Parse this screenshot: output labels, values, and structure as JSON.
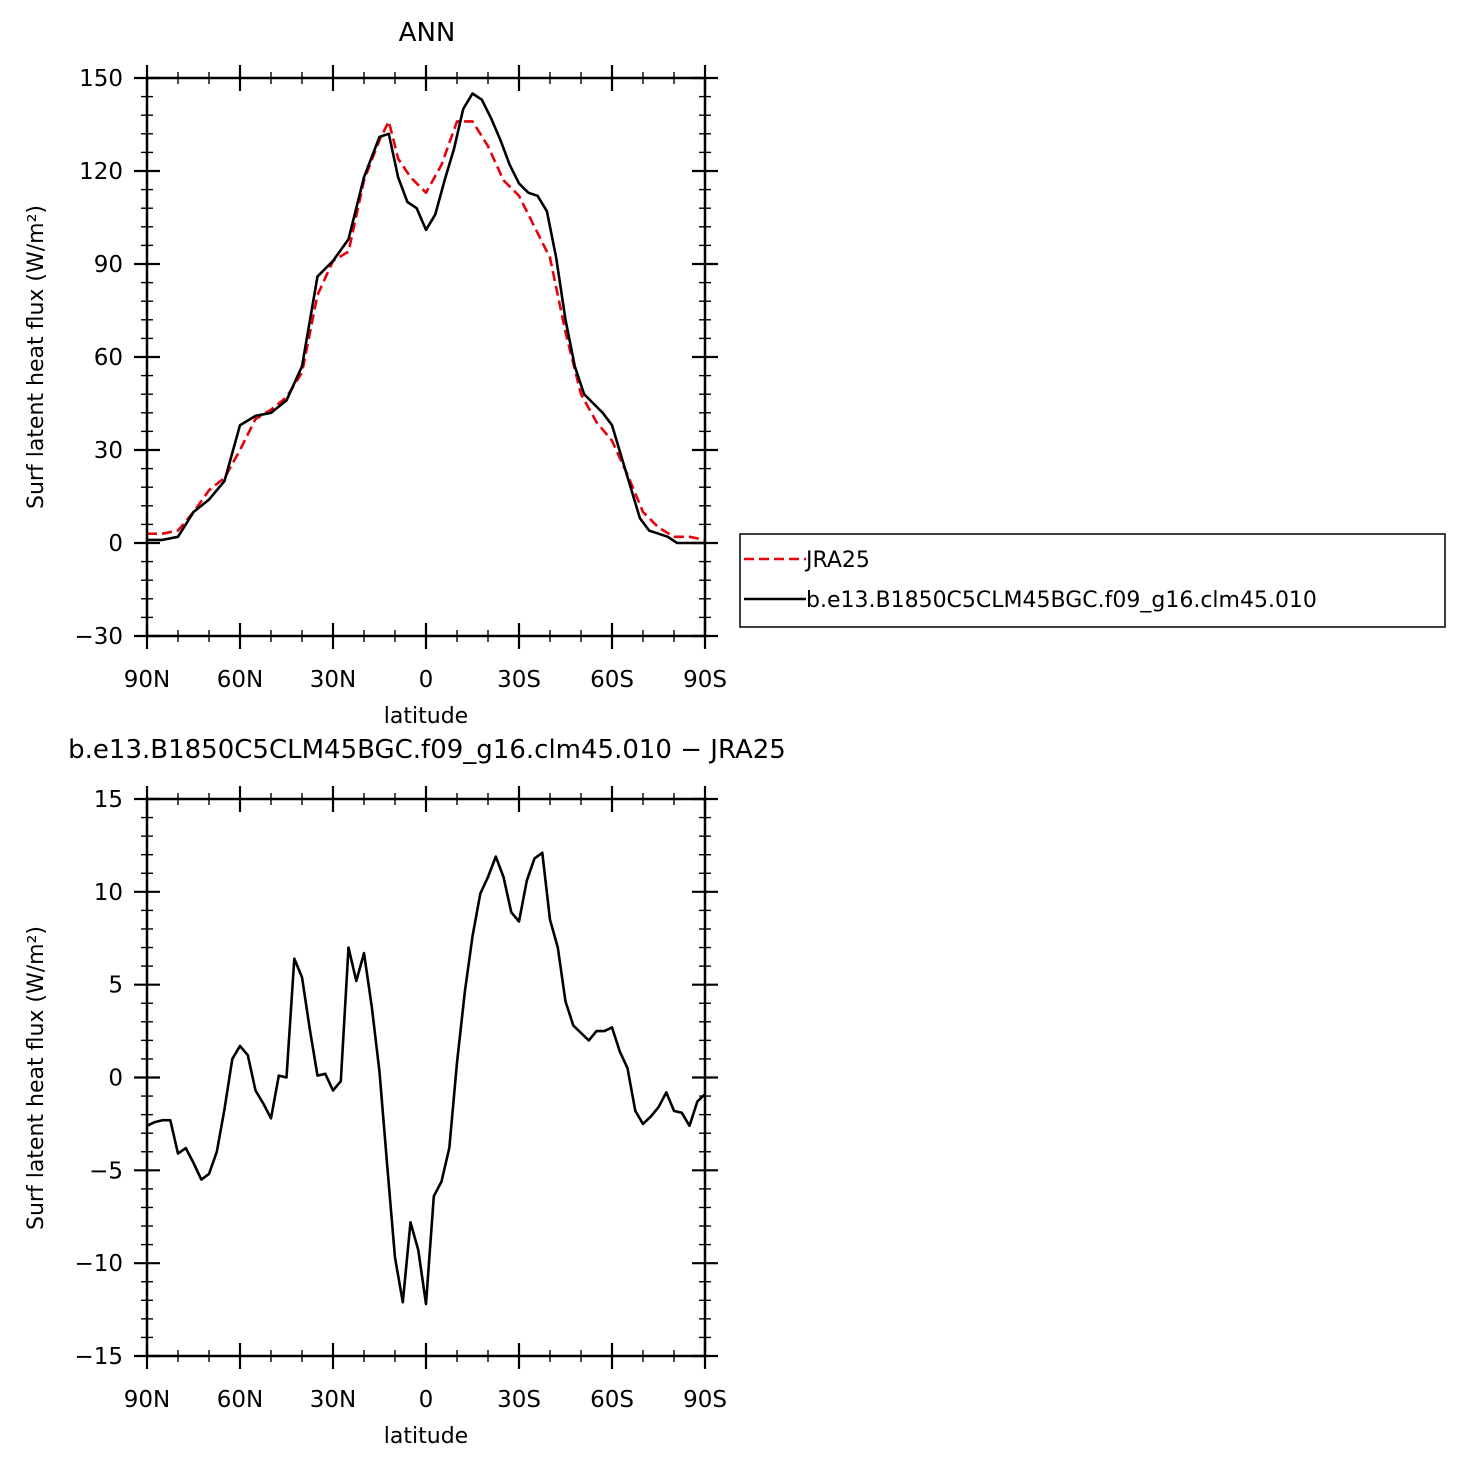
{
  "chart_data": [
    {
      "type": "line",
      "title": "ANN",
      "xlabel": "latitude",
      "ylabel": "Surf latent heat flux (W/m²)",
      "xlim": [
        90,
        -90
      ],
      "ylim": [
        -30,
        150
      ],
      "yticks": [
        -30,
        0,
        30,
        60,
        90,
        120,
        150
      ],
      "xticks": [
        {
          "value": 90,
          "label": "90N"
        },
        {
          "value": 60,
          "label": "60N"
        },
        {
          "value": 30,
          "label": "30N"
        },
        {
          "value": 0,
          "label": "0"
        },
        {
          "value": -30,
          "label": "30S"
        },
        {
          "value": -60,
          "label": "60S"
        },
        {
          "value": -90,
          "label": "90S"
        }
      ],
      "legend": "right",
      "series": [
        {
          "name": "JRA25",
          "color": "#e8000b",
          "dash": true,
          "points": [
            [
              90,
              3
            ],
            [
              85,
              3
            ],
            [
              80,
              4
            ],
            [
              75,
              10
            ],
            [
              70,
              17
            ],
            [
              65,
              21
            ],
            [
              60,
              30
            ],
            [
              55,
              40
            ],
            [
              50,
              43
            ],
            [
              45,
              47
            ],
            [
              40,
              55
            ],
            [
              35,
              80
            ],
            [
              30,
              91
            ],
            [
              25,
              94
            ],
            [
              20,
              117
            ],
            [
              15,
              130
            ],
            [
              12,
              136
            ],
            [
              9,
              124
            ],
            [
              5,
              118
            ],
            [
              0,
              113
            ],
            [
              -5,
              122
            ],
            [
              -10,
              136
            ],
            [
              -15,
              136
            ],
            [
              -20,
              128
            ],
            [
              -25,
              117
            ],
            [
              -30,
              112
            ],
            [
              -35,
              102
            ],
            [
              -40,
              92
            ],
            [
              -45,
              68
            ],
            [
              -50,
              48
            ],
            [
              -55,
              39
            ],
            [
              -60,
              33
            ],
            [
              -65,
              22
            ],
            [
              -70,
              10
            ],
            [
              -75,
              5
            ],
            [
              -80,
              2
            ],
            [
              -85,
              2
            ],
            [
              -90,
              1
            ]
          ]
        },
        {
          "name": "b.e13.B1850C5CLM45BGC.f09_g16.clm45.010",
          "color": "#000000",
          "dash": false,
          "points": [
            [
              90,
              1
            ],
            [
              85,
              1
            ],
            [
              80,
              2
            ],
            [
              75,
              10
            ],
            [
              70,
              14
            ],
            [
              65,
              20
            ],
            [
              60,
              38
            ],
            [
              55,
              41
            ],
            [
              50,
              42
            ],
            [
              45,
              46
            ],
            [
              40,
              57
            ],
            [
              35,
              86
            ],
            [
              30,
              91
            ],
            [
              25,
              98
            ],
            [
              20,
              118
            ],
            [
              15,
              131
            ],
            [
              12,
              132
            ],
            [
              9,
              118
            ],
            [
              6,
              110
            ],
            [
              3,
              108
            ],
            [
              0,
              101
            ],
            [
              -3,
              106
            ],
            [
              -6,
              117
            ],
            [
              -9,
              127
            ],
            [
              -12,
              140
            ],
            [
              -15,
              145
            ],
            [
              -18,
              143
            ],
            [
              -21,
              137
            ],
            [
              -24,
              130
            ],
            [
              -27,
              122
            ],
            [
              -30,
              116
            ],
            [
              -33,
              113
            ],
            [
              -36,
              112
            ],
            [
              -39,
              107
            ],
            [
              -42,
              92
            ],
            [
              -45,
              72
            ],
            [
              -48,
              57
            ],
            [
              -51,
              48
            ],
            [
              -54,
              45
            ],
            [
              -57,
              42
            ],
            [
              -60,
              38
            ],
            [
              -63,
              28
            ],
            [
              -66,
              18
            ],
            [
              -69,
              8
            ],
            [
              -72,
              4
            ],
            [
              -75,
              3
            ],
            [
              -78,
              2
            ],
            [
              -81,
              0
            ],
            [
              -84,
              0
            ],
            [
              -87,
              0
            ],
            [
              -90,
              0
            ]
          ]
        }
      ]
    },
    {
      "type": "line",
      "title": "b.e13.B1850C5CLM45BGC.f09_g16.clm45.010 − JRA25",
      "xlabel": "latitude",
      "ylabel": "Surf latent heat flux (W/m²)",
      "xlim": [
        90,
        -90
      ],
      "ylim": [
        -15,
        15
      ],
      "yticks": [
        -15,
        -10,
        -5,
        0,
        5,
        10,
        15
      ],
      "xticks": [
        {
          "value": 90,
          "label": "90N"
        },
        {
          "value": 60,
          "label": "60N"
        },
        {
          "value": 30,
          "label": "30N"
        },
        {
          "value": 0,
          "label": "0"
        },
        {
          "value": -30,
          "label": "30S"
        },
        {
          "value": -60,
          "label": "60S"
        },
        {
          "value": -90,
          "label": "90S"
        }
      ],
      "series": [
        {
          "color": "#000000",
          "dash": false,
          "points": [
            [
              90,
              -2.6
            ],
            [
              87.5,
              -2.4
            ],
            [
              85,
              -2.3
            ],
            [
              82.5,
              -2.3
            ],
            [
              80,
              -4.1
            ],
            [
              77.5,
              -3.8
            ],
            [
              75,
              -4.6
            ],
            [
              72.5,
              -5.5
            ],
            [
              70,
              -5.2
            ],
            [
              67.5,
              -4.0
            ],
            [
              65,
              -1.7
            ],
            [
              62.5,
              1.0
            ],
            [
              60,
              1.7
            ],
            [
              57.5,
              1.2
            ],
            [
              55,
              -0.7
            ],
            [
              52.5,
              -1.4
            ],
            [
              50,
              -2.2
            ],
            [
              47.5,
              0.1
            ],
            [
              45,
              0.0
            ],
            [
              42.5,
              6.4
            ],
            [
              40,
              5.4
            ],
            [
              37.5,
              2.6
            ],
            [
              35,
              0.1
            ],
            [
              32.5,
              0.2
            ],
            [
              30,
              -0.7
            ],
            [
              27.5,
              -0.2
            ],
            [
              25,
              7.0
            ],
            [
              22.5,
              5.2
            ],
            [
              20,
              6.7
            ],
            [
              17.5,
              3.8
            ],
            [
              15,
              0.3
            ],
            [
              12.5,
              -4.8
            ],
            [
              10,
              -9.7
            ],
            [
              7.5,
              -12.1
            ],
            [
              5,
              -7.8
            ],
            [
              2.5,
              -9.3
            ],
            [
              0,
              -12.2
            ],
            [
              -2.5,
              -6.4
            ],
            [
              -5,
              -5.6
            ],
            [
              -7.5,
              -3.8
            ],
            [
              -10,
              0.8
            ],
            [
              -12.5,
              4.6
            ],
            [
              -15,
              7.6
            ],
            [
              -17.5,
              9.9
            ],
            [
              -20,
              10.8
            ],
            [
              -22.5,
              11.9
            ],
            [
              -25,
              10.8
            ],
            [
              -27.5,
              8.9
            ],
            [
              -30,
              8.4
            ],
            [
              -32.5,
              10.6
            ],
            [
              -35,
              11.8
            ],
            [
              -37.5,
              12.1
            ],
            [
              -40,
              8.5
            ],
            [
              -42.5,
              7.0
            ],
            [
              -45,
              4.1
            ],
            [
              -47.5,
              2.8
            ],
            [
              -50,
              2.4
            ],
            [
              -52.5,
              2.0
            ],
            [
              -55,
              2.5
            ],
            [
              -57.5,
              2.5
            ],
            [
              -60,
              2.7
            ],
            [
              -62.5,
              1.4
            ],
            [
              -65,
              0.5
            ],
            [
              -67.5,
              -1.8
            ],
            [
              -70,
              -2.5
            ],
            [
              -72.5,
              -2.1
            ],
            [
              -75,
              -1.6
            ],
            [
              -77.5,
              -0.8
            ],
            [
              -80,
              -1.8
            ],
            [
              -82.5,
              -1.9
            ],
            [
              -85,
              -2.6
            ],
            [
              -87.5,
              -1.3
            ],
            [
              -90,
              -0.9
            ]
          ]
        }
      ]
    }
  ]
}
